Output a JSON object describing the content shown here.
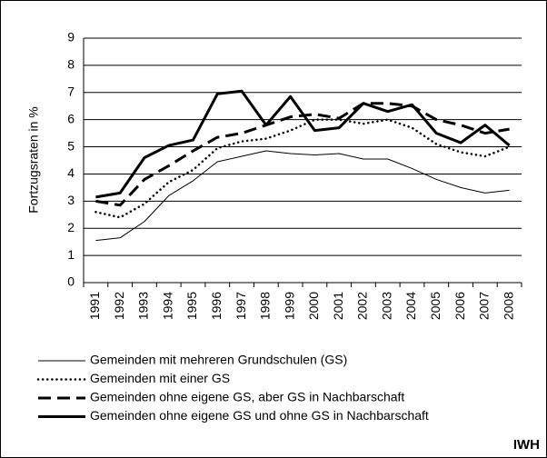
{
  "chart_data": {
    "type": "line",
    "y_label": "Fortzugsraten in %",
    "categories": [
      "1991",
      "1992",
      "1993",
      "1994",
      "1995",
      "1996",
      "1997",
      "1998",
      "1999",
      "2000",
      "2001",
      "2002",
      "2003",
      "2004",
      "2005",
      "2006",
      "2007",
      "2008"
    ],
    "ylim": [
      0,
      9
    ],
    "yticks": [
      0,
      1,
      2,
      3,
      4,
      5,
      6,
      7,
      8,
      9
    ],
    "grid": true,
    "legend": "bottom",
    "series": [
      {
        "name": "Gemeinden mit mehreren Grundschulen (GS)",
        "color": "#000000",
        "line_style": "solid",
        "line_width": 1,
        "values": [
          1.55,
          1.65,
          2.25,
          3.2,
          3.75,
          4.45,
          4.65,
          4.85,
          4.75,
          4.7,
          4.75,
          4.55,
          4.55,
          4.2,
          3.8,
          3.5,
          3.3,
          3.4
        ]
      },
      {
        "name": "Gemeinden mit einer GS",
        "color": "#000000",
        "line_style": "dotted",
        "line_width": 2.5,
        "values": [
          2.6,
          2.4,
          2.9,
          3.7,
          4.15,
          4.95,
          5.2,
          5.3,
          5.6,
          6.0,
          6.0,
          5.85,
          6.0,
          5.7,
          5.1,
          4.8,
          4.65,
          5.0
        ]
      },
      {
        "name": "Gemeinden ohne eigene GS, aber GS in Nachbarschaft",
        "color": "#000000",
        "line_style": "dashed",
        "line_width": 3,
        "values": [
          3.0,
          2.85,
          3.8,
          4.3,
          4.85,
          5.35,
          5.5,
          5.8,
          6.1,
          6.2,
          6.05,
          6.6,
          6.6,
          6.5,
          6.0,
          5.8,
          5.5,
          5.65
        ]
      },
      {
        "name": "Gemeinden ohne eigene GS und ohne GS in Nachbarschaft",
        "color": "#000000",
        "line_style": "solid",
        "line_width": 3,
        "values": [
          3.15,
          3.3,
          4.6,
          5.05,
          5.25,
          6.95,
          7.05,
          5.8,
          6.85,
          5.6,
          5.7,
          6.6,
          6.3,
          6.55,
          5.5,
          5.15,
          5.8,
          5.05
        ]
      }
    ],
    "source": "IWH"
  }
}
